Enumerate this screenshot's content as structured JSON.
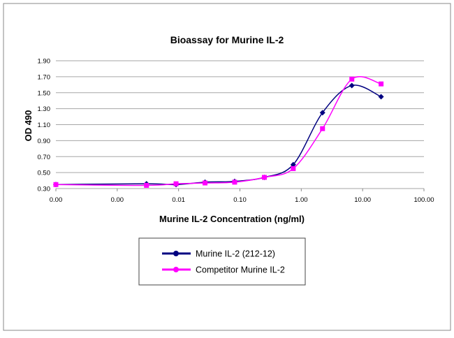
{
  "chart_data": {
    "type": "line",
    "title": "Bioassay for Murine IL-2",
    "xlabel": "Murine IL-2 Concentration (ng/ml)",
    "ylabel": "OD 490",
    "xscale": "log",
    "xlim": [
      0.0001,
      100
    ],
    "ylim": [
      0.3,
      1.9
    ],
    "x_tick_values": [
      0.0001,
      0.001,
      0.01,
      0.1,
      1,
      10,
      100
    ],
    "x_tick_labels": [
      "0.00",
      "0.00",
      "0.01",
      "0.10",
      "1.00",
      "10.00",
      "100.00"
    ],
    "y_ticks": [
      0.3,
      0.5,
      0.7,
      0.9,
      1.1,
      1.3,
      1.5,
      1.7,
      1.9
    ],
    "y_tick_labels": [
      "0.30",
      "0.50",
      "0.70",
      "0.90",
      "1.10",
      "1.30",
      "1.50",
      "1.70",
      "1.90"
    ],
    "grid": "horizontal",
    "legend_position": "bottom",
    "smoothed": true,
    "x": [
      0.0001,
      0.003,
      0.0091,
      0.027,
      0.082,
      0.25,
      0.74,
      2.22,
      6.67,
      20
    ],
    "series": [
      {
        "name": "Murine IL-2 (212-12)",
        "color": "#000080",
        "marker": "diamond",
        "values": [
          0.35,
          0.36,
          0.35,
          0.38,
          0.39,
          0.44,
          0.6,
          1.25,
          1.59,
          1.45
        ]
      },
      {
        "name": "Competitor Murine IL-2",
        "color": "#FF00FF",
        "marker": "square",
        "values": [
          0.35,
          0.34,
          0.36,
          0.37,
          0.38,
          0.44,
          0.55,
          1.05,
          1.67,
          1.61
        ]
      }
    ]
  }
}
